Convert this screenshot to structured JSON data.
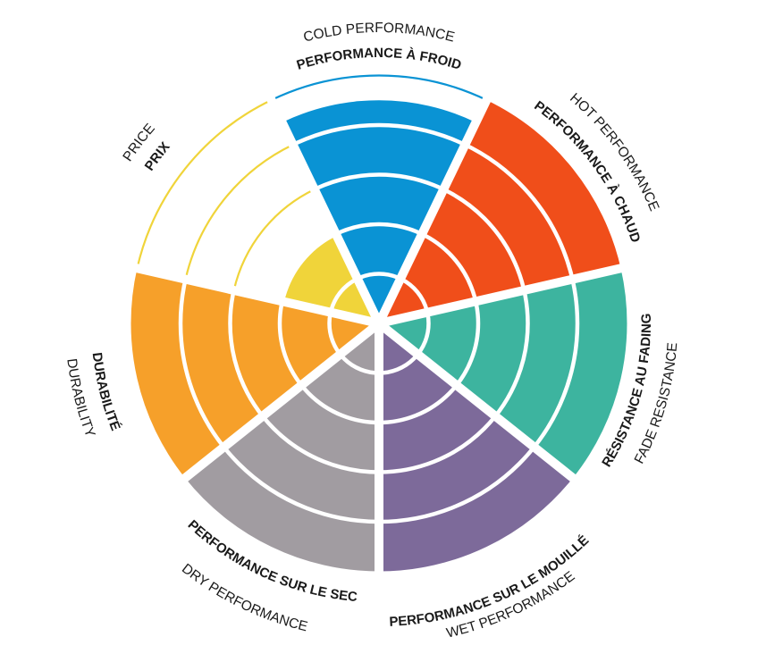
{
  "chart_data": {
    "type": "polar-area",
    "title": "",
    "rlim": [
      0,
      5
    ],
    "ring_levels": 5,
    "grid": true,
    "categories": [
      {
        "label_fr": "PERFORMANCE À FROID",
        "label_en": "COLD PERFORMANCE",
        "value": 4.5,
        "color": "#0a93d4"
      },
      {
        "label_fr": "PERFORMANCE À CHAUD",
        "label_en": "HOT PERFORMANCE",
        "value": 5,
        "color": "#f04e1a"
      },
      {
        "label_fr": "RÉSISTANCE AU FADING",
        "label_en": "FADE RESISTANCE",
        "value": 5,
        "color": "#3db49f"
      },
      {
        "label_fr": "PERFORMANCE SUR LE MOUILLÉ",
        "label_en": "WET PERFORMANCE",
        "value": 5,
        "color": "#7d6a9a"
      },
      {
        "label_fr": "PERFORMANCE SUR LE SEC",
        "label_en": "DRY PERFORMANCE",
        "value": 5,
        "color": "#a19ca1"
      },
      {
        "label_fr": "DURABILITÉ",
        "label_en": "DURABILITY",
        "value": 5,
        "color": "#f6a02a"
      },
      {
        "label_fr": "PRIX",
        "label_en": "PRICE",
        "value": 2,
        "color": "#f0d43a"
      }
    ]
  }
}
